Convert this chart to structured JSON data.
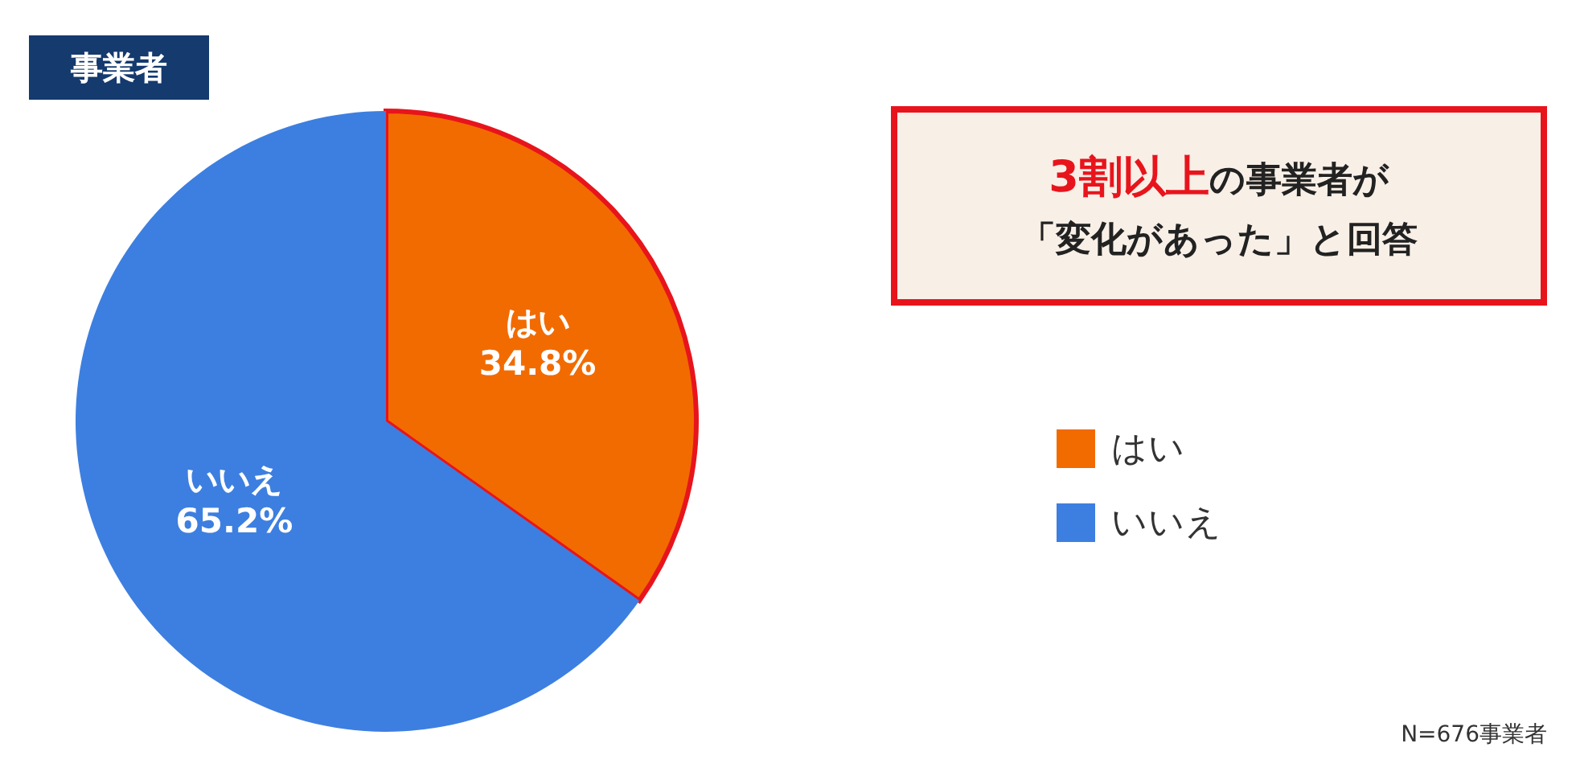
{
  "chart_data": {
    "type": "pie",
    "title": "事業者",
    "categories": [
      "はい",
      "いいえ"
    ],
    "values": [
      34.8,
      65.2
    ],
    "value_labels": [
      "34.8%",
      "65.2%"
    ],
    "colors": [
      "#f26b00",
      "#3d7fe0"
    ],
    "legend": "right",
    "annotations": [
      "3割以上",
      "の事業者が",
      "「変化があった」と回答",
      "N=676事業者"
    ]
  }
}
